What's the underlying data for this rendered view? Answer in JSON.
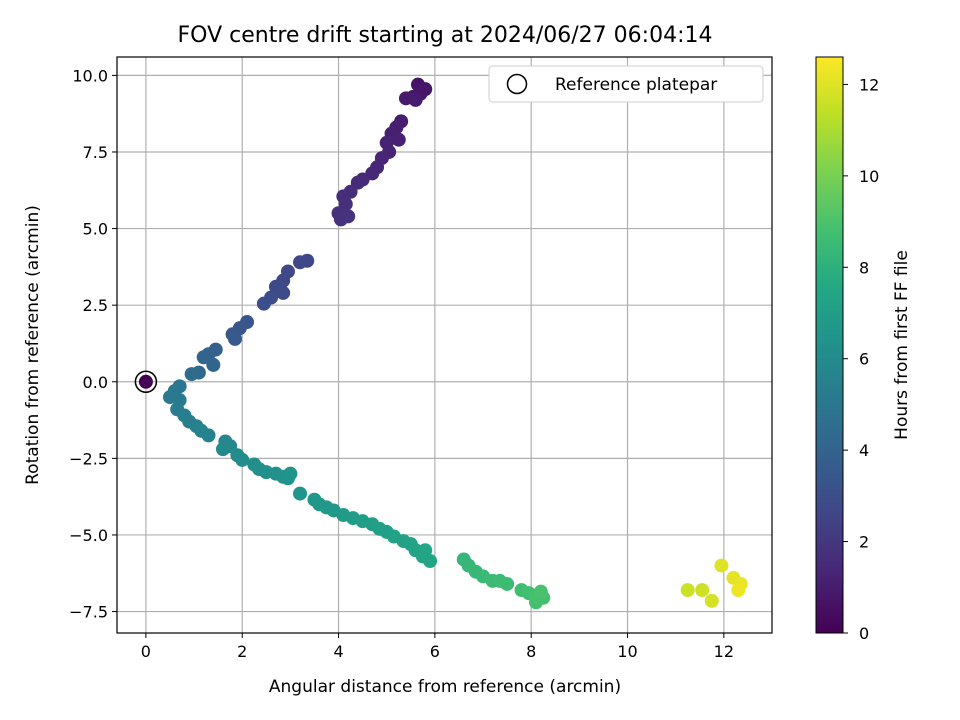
{
  "chart_data": {
    "type": "scatter",
    "title": "FOV centre drift starting at 2024/06/27 06:04:14",
    "xlabel": "Angular distance from reference (arcmin)",
    "ylabel": "Rotation from reference (arcmin)",
    "xlim": [
      -0.6,
      13.0
    ],
    "ylim": [
      -8.2,
      10.6
    ],
    "xticks": [
      0,
      2,
      4,
      6,
      8,
      10,
      12
    ],
    "xtick_labels": [
      "0",
      "2",
      "4",
      "6",
      "8",
      "10",
      "12"
    ],
    "yticks": [
      -7.5,
      -5.0,
      -2.5,
      0.0,
      2.5,
      5.0,
      7.5,
      10.0
    ],
    "ytick_labels": [
      "−7.5",
      "−5.0",
      "−2.5",
      "0.0",
      "2.5",
      "5.0",
      "7.5",
      "10.0"
    ],
    "grid": true,
    "legend": {
      "position": "top-right",
      "entries": [
        "Reference platepar"
      ]
    },
    "colorbar": {
      "label": "Hours from first FF file",
      "colormap": "viridis",
      "range": [
        0,
        12.6
      ],
      "ticks": [
        0,
        2,
        4,
        6,
        8,
        10,
        12
      ],
      "tick_labels": [
        "0",
        "2",
        "4",
        "6",
        "8",
        "10",
        "12"
      ]
    },
    "reference": {
      "x": 0.0,
      "y": 0.0,
      "hours": 0.0
    },
    "series": [
      {
        "points": [
          [
            5.65,
            9.7,
            0.7
          ],
          [
            5.8,
            9.55,
            0.75
          ],
          [
            5.7,
            9.4,
            0.8
          ],
          [
            5.55,
            9.3,
            0.85
          ],
          [
            5.4,
            9.25,
            0.9
          ],
          [
            5.6,
            9.2,
            0.95
          ],
          [
            5.3,
            8.5,
            1.0
          ],
          [
            5.2,
            8.3,
            1.05
          ],
          [
            5.1,
            8.1,
            1.1
          ],
          [
            5.25,
            7.9,
            1.15
          ],
          [
            5.0,
            7.8,
            1.2
          ],
          [
            5.05,
            7.5,
            1.25
          ],
          [
            4.9,
            7.3,
            1.3
          ],
          [
            4.8,
            7.0,
            1.35
          ],
          [
            4.7,
            6.8,
            1.4
          ],
          [
            4.5,
            6.6,
            1.5
          ],
          [
            4.4,
            6.5,
            1.55
          ],
          [
            4.25,
            6.2,
            1.6
          ],
          [
            4.1,
            6.05,
            1.65
          ],
          [
            4.15,
            5.8,
            1.7
          ],
          [
            4.0,
            5.5,
            1.75
          ],
          [
            4.05,
            5.3,
            1.8
          ],
          [
            4.2,
            5.4,
            1.85
          ],
          [
            3.35,
            3.95,
            2.6
          ],
          [
            3.2,
            3.9,
            2.65
          ],
          [
            2.95,
            3.6,
            2.7
          ],
          [
            2.85,
            3.3,
            2.75
          ],
          [
            2.7,
            3.1,
            2.8
          ],
          [
            2.85,
            2.9,
            2.9
          ],
          [
            2.6,
            2.75,
            2.95
          ],
          [
            2.45,
            2.55,
            3.0
          ],
          [
            2.1,
            1.95,
            3.3
          ],
          [
            1.95,
            1.75,
            3.35
          ],
          [
            1.8,
            1.55,
            3.45
          ],
          [
            1.85,
            1.4,
            3.5
          ],
          [
            1.45,
            1.05,
            3.9
          ],
          [
            1.3,
            0.9,
            4.0
          ],
          [
            1.2,
            0.8,
            4.05
          ],
          [
            1.4,
            0.55,
            4.1
          ],
          [
            1.1,
            0.3,
            4.3
          ],
          [
            0.95,
            0.25,
            4.4
          ],
          [
            0.7,
            -0.15,
            5.0
          ],
          [
            0.6,
            -0.3,
            5.05
          ],
          [
            0.5,
            -0.5,
            5.1
          ],
          [
            0.7,
            -0.6,
            5.15
          ],
          [
            0.65,
            -0.9,
            5.2
          ],
          [
            0.8,
            -1.1,
            5.3
          ],
          [
            0.9,
            -1.3,
            5.4
          ],
          [
            1.05,
            -1.45,
            5.5
          ],
          [
            1.15,
            -1.6,
            5.55
          ],
          [
            1.3,
            -1.75,
            5.6
          ],
          [
            1.65,
            -1.95,
            5.8
          ],
          [
            1.75,
            -2.1,
            5.85
          ],
          [
            1.6,
            -2.2,
            5.9
          ],
          [
            1.9,
            -2.4,
            6.0
          ],
          [
            2.0,
            -2.55,
            6.05
          ],
          [
            2.25,
            -2.7,
            6.15
          ],
          [
            2.35,
            -2.85,
            6.2
          ],
          [
            2.5,
            -2.95,
            6.25
          ],
          [
            2.7,
            -3.0,
            6.3
          ],
          [
            2.85,
            -3.1,
            6.35
          ],
          [
            2.95,
            -3.15,
            6.4
          ],
          [
            3.0,
            -3.0,
            6.45
          ],
          [
            3.2,
            -3.65,
            6.5
          ],
          [
            3.5,
            -3.85,
            6.6
          ],
          [
            3.6,
            -4.0,
            6.65
          ],
          [
            3.75,
            -4.1,
            6.7
          ],
          [
            3.9,
            -4.2,
            6.75
          ],
          [
            4.1,
            -4.35,
            6.85
          ],
          [
            4.3,
            -4.45,
            6.9
          ],
          [
            4.5,
            -4.55,
            6.95
          ],
          [
            4.7,
            -4.65,
            7.0
          ],
          [
            4.85,
            -4.8,
            7.05
          ],
          [
            5.0,
            -4.9,
            7.1
          ],
          [
            5.15,
            -5.05,
            7.15
          ],
          [
            5.35,
            -5.2,
            7.2
          ],
          [
            5.5,
            -5.3,
            7.25
          ],
          [
            5.6,
            -5.5,
            7.3
          ],
          [
            5.75,
            -5.7,
            7.35
          ],
          [
            5.9,
            -5.85,
            7.4
          ],
          [
            5.8,
            -5.5,
            7.45
          ],
          [
            6.6,
            -5.8,
            8.3
          ],
          [
            6.7,
            -6.0,
            8.35
          ],
          [
            6.85,
            -6.2,
            8.4
          ],
          [
            7.0,
            -6.35,
            8.45
          ],
          [
            7.2,
            -6.5,
            8.5
          ],
          [
            7.35,
            -6.5,
            8.55
          ],
          [
            7.5,
            -6.6,
            8.6
          ],
          [
            7.8,
            -6.8,
            8.7
          ],
          [
            7.95,
            -6.9,
            8.75
          ],
          [
            8.1,
            -7.0,
            8.8
          ],
          [
            8.25,
            -7.05,
            8.85
          ],
          [
            8.1,
            -7.2,
            8.9
          ],
          [
            8.2,
            -6.85,
            8.95
          ],
          [
            11.25,
            -6.8,
            11.6
          ],
          [
            11.55,
            -6.8,
            11.7
          ],
          [
            11.75,
            -7.15,
            11.8
          ],
          [
            11.95,
            -6.0,
            12.0
          ],
          [
            12.2,
            -6.4,
            12.1
          ],
          [
            12.35,
            -6.6,
            12.2
          ],
          [
            12.3,
            -6.8,
            12.3
          ]
        ]
      }
    ]
  }
}
